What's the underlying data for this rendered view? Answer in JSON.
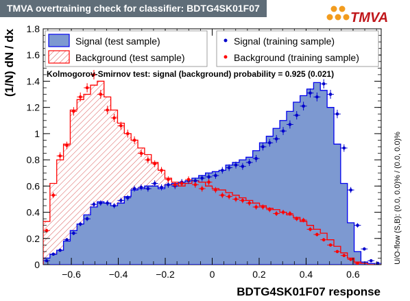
{
  "header": {
    "title": "TMVA overtraining check for classifier: BDTG4SK01F07",
    "logo_text": "TMVA"
  },
  "colors": {
    "signal_fill": "#7d99d1",
    "signal_line": "#0000ee",
    "signal_points": "#0000cc",
    "background": "#ff0000",
    "hatch_line": "#d43a3a",
    "title_bg": "#5f6d78",
    "logo_dots": "#f29c1e",
    "logo_text": "#c0171b"
  },
  "chart_data": {
    "type": "histogram",
    "title": "",
    "xlabel": "BDTG4SK01F07 response",
    "ylabel": "(1/N) dN / dx",
    "xlim": [
      -0.72,
      0.72
    ],
    "ylim": [
      0,
      1.8
    ],
    "x_ticks": [
      -0.6,
      -0.4,
      -0.2,
      0,
      0.2,
      0.4,
      0.6
    ],
    "y_ticks": [
      0,
      0.2,
      0.4,
      0.6,
      0.8,
      1,
      1.2,
      1.4,
      1.6,
      1.8
    ],
    "bin_width": 0.0288,
    "legend": {
      "position": "top",
      "entries": [
        {
          "label": "Signal (test sample)",
          "style": "fill"
        },
        {
          "label": "Signal (training sample)",
          "style": "marker"
        },
        {
          "label": "Background (test sample)",
          "style": "hatch"
        },
        {
          "label": "Background (training sample)",
          "style": "marker"
        }
      ]
    },
    "ks_text": "Kolmogorov-Smirnov test: signal (background) probability = 0.925 (0.021)",
    "overflow_text": "U/O-flow (S,B): (0.0, 0.0)% / (0.0, 0.0)%",
    "series": [
      {
        "name": "Signal (test sample)",
        "kind": "hist_filled",
        "values": [
          0.05,
          0.08,
          0.11,
          0.18,
          0.26,
          0.31,
          0.38,
          0.44,
          0.48,
          0.47,
          0.45,
          0.47,
          0.52,
          0.57,
          0.58,
          0.6,
          0.6,
          0.58,
          0.61,
          0.62,
          0.63,
          0.64,
          0.66,
          0.68,
          0.7,
          0.71,
          0.72,
          0.76,
          0.78,
          0.8,
          0.82,
          0.87,
          0.93,
          0.98,
          1.04,
          1.1,
          1.17,
          1.24,
          1.29,
          1.34,
          1.39,
          1.33,
          1.2,
          0.92,
          0.62,
          0.32,
          0.1,
          0.02,
          0.01,
          0.0
        ]
      },
      {
        "name": "Signal (training sample)",
        "kind": "points",
        "values": [
          0.03,
          0.08,
          0.11,
          0.19,
          0.24,
          0.31,
          0.35,
          0.46,
          0.47,
          0.47,
          0.45,
          0.49,
          0.51,
          0.58,
          0.59,
          0.58,
          0.62,
          0.59,
          0.61,
          0.6,
          0.63,
          0.64,
          0.64,
          0.66,
          0.67,
          0.68,
          0.72,
          0.74,
          0.76,
          0.75,
          0.78,
          0.81,
          0.9,
          0.93,
          0.96,
          1.02,
          1.07,
          1.14,
          1.21,
          1.31,
          1.28,
          1.38,
          1.3,
          1.15,
          0.89,
          0.57,
          0.3,
          0.12,
          0.03,
          0.01
        ]
      },
      {
        "name": "Background (test sample)",
        "kind": "hist_hatched",
        "values": [
          0.33,
          0.62,
          0.8,
          0.92,
          1.18,
          1.26,
          1.3,
          1.37,
          1.4,
          1.28,
          1.18,
          1.08,
          1.0,
          0.95,
          0.89,
          0.84,
          0.78,
          0.72,
          0.66,
          0.63,
          0.6,
          0.62,
          0.64,
          0.63,
          0.6,
          0.58,
          0.57,
          0.55,
          0.53,
          0.51,
          0.49,
          0.47,
          0.45,
          0.43,
          0.42,
          0.4,
          0.38,
          0.36,
          0.33,
          0.3,
          0.27,
          0.24,
          0.19,
          0.14,
          0.09,
          0.05,
          0.02,
          0.01,
          0.0,
          0.0
        ]
      },
      {
        "name": "Background (training sample)",
        "kind": "points",
        "values": [
          0.26,
          0.53,
          0.83,
          0.91,
          1.17,
          1.28,
          1.35,
          1.45,
          1.3,
          1.18,
          1.12,
          1.06,
          1.0,
          0.95,
          0.85,
          0.8,
          0.77,
          0.72,
          0.65,
          0.61,
          0.62,
          0.65,
          0.61,
          0.58,
          0.63,
          0.57,
          0.53,
          0.52,
          0.5,
          0.49,
          0.47,
          0.44,
          0.44,
          0.42,
          0.39,
          0.4,
          0.39,
          0.35,
          0.34,
          0.27,
          0.23,
          0.19,
          0.15,
          0.1,
          0.07,
          0.04,
          0.01,
          0.0,
          0.0,
          0.0
        ]
      }
    ]
  }
}
